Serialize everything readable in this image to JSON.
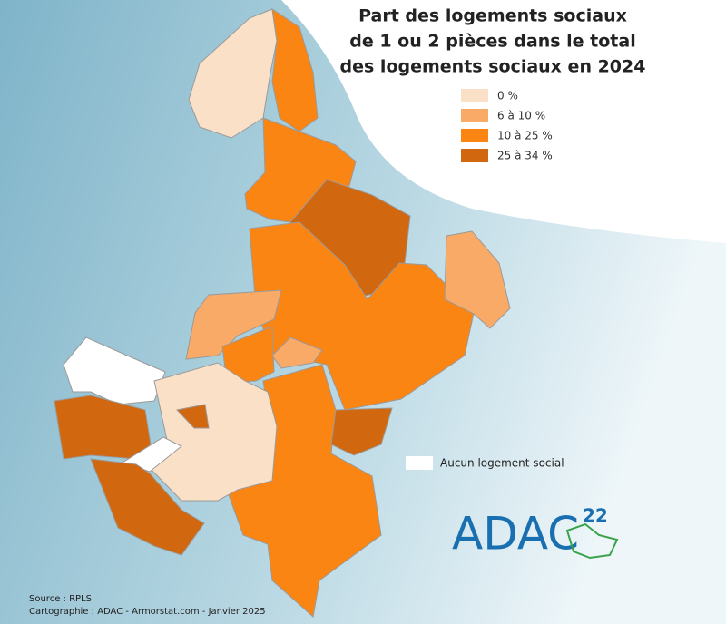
{
  "header": {
    "title_lines": [
      "Part des logements sociaux",
      "de 1 ou 2 pièces dans le total",
      "des logements sociaux en 2024"
    ]
  },
  "legend": {
    "items": [
      {
        "label": "0 %",
        "color": "#fbe0c8"
      },
      {
        "label": "6 à 10 %",
        "color": "#f9aa66"
      },
      {
        "label": "10 à 25 %",
        "color": "#fb8513"
      },
      {
        "label": "25 à 34 %",
        "color": "#d1670f"
      }
    ],
    "no_data": {
      "label": "Aucun logement social",
      "color": "#ffffff"
    }
  },
  "footer": {
    "source": "Source : RPLS",
    "credit": "Cartographie : ADAC - Armorstat.com - Janvier 2025"
  },
  "logo": {
    "text": "ADAC",
    "number": "22"
  }
}
